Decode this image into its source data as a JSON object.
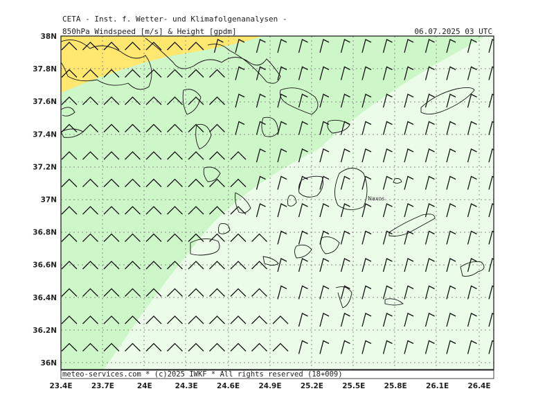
{
  "header": {
    "title": "CETA - Inst. f. Wetter- und Klimafolgenanalysen -",
    "product": "850hPa Windspeed [m/s] & Height [gpdm]",
    "datetime": "06.07.2025 03 UTC"
  },
  "footer": {
    "credit": "meteo-services.com * (c)2025 IWKF * All rights reserved (18+009)"
  },
  "axes": {
    "lon_ticks": [
      "23.4E",
      "23.7E",
      "24E",
      "24.3E",
      "24.6E",
      "24.9E",
      "25.2E",
      "25.5E",
      "25.8E",
      "26.1E",
      "26.4E"
    ],
    "lat_ticks": [
      "38N",
      "37.8N",
      "37.6N",
      "37.4N",
      "37.2N",
      "37N",
      "36.8N",
      "36.6N",
      "36.4N",
      "36.2N",
      "36N"
    ],
    "lon_values": [
      23.4,
      23.7,
      24.0,
      24.3,
      24.6,
      24.9,
      25.2,
      25.5,
      25.8,
      26.1,
      26.4
    ],
    "lat_values": [
      38.0,
      37.8,
      37.6,
      37.4,
      37.2,
      37.0,
      36.8,
      36.6,
      36.4,
      36.2,
      36.0
    ],
    "grid": "dotted"
  },
  "places": [
    {
      "name": "Naxos",
      "lon": 25.48,
      "lat": 37.02
    }
  ],
  "colors": {
    "band_yellow": "#ffe770",
    "band_green": "#cdf7c8",
    "band_pale": "#ebfde9",
    "coast": "#111111",
    "grid": "#888888"
  }
}
